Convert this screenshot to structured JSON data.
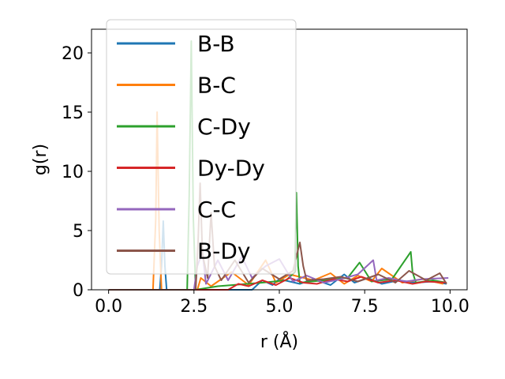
{
  "chart_data": {
    "type": "line",
    "title": "",
    "xlabel": "r (Å)",
    "ylabel": "g(r)",
    "xlim": [
      -0.5,
      10.5
    ],
    "ylim": [
      0,
      22
    ],
    "xticks": [
      0.0,
      2.5,
      5.0,
      7.5,
      10.0
    ],
    "xtick_labels": [
      "0.0",
      "2.5",
      "5.0",
      "7.5",
      "10.0"
    ],
    "yticks": [
      0,
      5,
      10,
      15,
      20
    ],
    "ytick_labels": [
      "0",
      "5",
      "10",
      "15",
      "20"
    ],
    "grid": false,
    "legend_position": "top-left",
    "series": [
      {
        "name": "B-B",
        "color": "#1f77b4",
        "x": [
          0.0,
          1.5,
          1.55,
          1.6,
          1.65,
          1.7,
          2.5,
          4.2,
          4.5,
          4.8,
          5.0,
          5.6,
          6.0,
          6.5,
          6.9,
          7.2,
          7.6,
          8.0,
          8.5,
          9.0,
          9.5,
          9.9
        ],
        "y": [
          0,
          0,
          2.0,
          5.8,
          2.0,
          0,
          0,
          0,
          0.8,
          0.4,
          0.9,
          0.5,
          0.9,
          0.4,
          1.3,
          0.6,
          1.0,
          0.5,
          0.8,
          0.6,
          0.7,
          0.5
        ]
      },
      {
        "name": "B-C",
        "color": "#ff7f0e",
        "x": [
          0.0,
          1.3,
          1.38,
          1.42,
          1.48,
          1.55,
          2.6,
          2.7,
          3.0,
          3.6,
          4.1,
          4.6,
          4.9,
          5.3,
          6.0,
          6.5,
          6.9,
          7.3,
          7.7,
          8.0,
          8.6,
          9.2,
          9.8
        ],
        "y": [
          0,
          0,
          6.0,
          15.0,
          5.0,
          0,
          0,
          1.0,
          0.3,
          1.5,
          0.4,
          2.5,
          0.6,
          1.3,
          0.8,
          1.4,
          0.5,
          1.2,
          0.7,
          1.8,
          0.6,
          0.9,
          0.5
        ]
      },
      {
        "name": "C-Dy",
        "color": "#2ca02c",
        "x": [
          0.0,
          2.3,
          2.36,
          2.42,
          2.48,
          2.55,
          3.2,
          4.5,
          5.2,
          5.45,
          5.5,
          5.55,
          5.6,
          6.3,
          7.0,
          7.35,
          7.7,
          8.3,
          8.85,
          8.9,
          9.0,
          9.5,
          9.9
        ],
        "y": [
          0,
          0,
          8.0,
          21.0,
          6.0,
          0,
          0.3,
          0.6,
          0.8,
          1.5,
          8.2,
          2.0,
          0.6,
          0.8,
          1.0,
          2.3,
          0.7,
          0.9,
          3.2,
          1.5,
          0.6,
          0.8,
          0.6
        ]
      },
      {
        "name": "Dy-Dy",
        "color": "#d62728",
        "x": [
          0.0,
          3.5,
          3.8,
          4.1,
          4.5,
          4.9,
          5.3,
          5.7,
          6.1,
          6.6,
          7.0,
          7.4,
          7.9,
          8.4,
          8.9,
          9.3,
          9.9
        ],
        "y": [
          0,
          0,
          0.5,
          0.3,
          0.8,
          0.4,
          1.0,
          0.6,
          0.5,
          0.9,
          0.7,
          1.1,
          0.6,
          0.8,
          0.5,
          0.7,
          0.6
        ]
      },
      {
        "name": "C-C",
        "color": "#9467bd",
        "x": [
          0.0,
          2.5,
          2.6,
          2.75,
          2.85,
          3.2,
          3.5,
          3.9,
          4.2,
          4.6,
          5.0,
          5.4,
          5.8,
          6.3,
          6.8,
          7.3,
          7.75,
          7.85,
          8.2,
          8.7,
          9.2,
          9.95
        ],
        "y": [
          0,
          0,
          2.0,
          3.2,
          0.5,
          2.5,
          0.8,
          2.8,
          1.0,
          2.0,
          2.6,
          0.7,
          1.2,
          0.6,
          0.9,
          1.3,
          2.5,
          0.8,
          1.0,
          0.7,
          0.9,
          1.0
        ]
      },
      {
        "name": "B-Dy",
        "color": "#8c564b",
        "x": [
          0.0,
          2.55,
          2.62,
          2.68,
          2.75,
          2.9,
          3.0,
          3.1,
          3.3,
          3.7,
          4.1,
          4.5,
          5.0,
          5.4,
          5.6,
          5.7,
          5.8,
          6.3,
          6.8,
          7.3,
          7.9,
          8.4,
          8.8,
          9.3,
          9.7,
          9.9
        ],
        "y": [
          0,
          0,
          4.0,
          9.0,
          3.0,
          1.0,
          6.5,
          2.0,
          0.8,
          2.5,
          0.6,
          1.8,
          0.9,
          1.6,
          4.0,
          2.0,
          0.8,
          0.9,
          1.1,
          0.7,
          1.3,
          0.6,
          1.6,
          0.8,
          1.4,
          0.5
        ]
      }
    ]
  }
}
